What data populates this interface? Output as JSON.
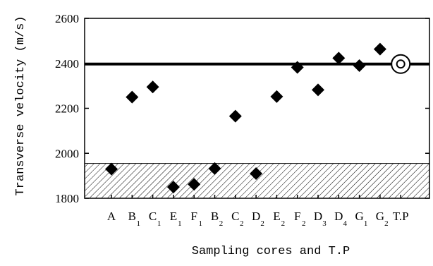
{
  "chart_data": {
    "type": "scatter",
    "title": "",
    "xlabel": "Sampling cores and T.P",
    "ylabel": "Transverse velocity (m/s)",
    "ylim": [
      1800,
      2600
    ],
    "yticks": [
      1800,
      2000,
      2200,
      2400,
      2600
    ],
    "grid": false,
    "categories": [
      {
        "base": "A",
        "sub": ""
      },
      {
        "base": "B",
        "sub": "1"
      },
      {
        "base": "C",
        "sub": "1"
      },
      {
        "base": "E",
        "sub": "1"
      },
      {
        "base": "F",
        "sub": "1"
      },
      {
        "base": "B",
        "sub": "2"
      },
      {
        "base": "C",
        "sub": "2"
      },
      {
        "base": "D",
        "sub": "2"
      },
      {
        "base": "E",
        "sub": "2"
      },
      {
        "base": "F",
        "sub": "2"
      },
      {
        "base": "D",
        "sub": "3"
      },
      {
        "base": "D",
        "sub": "4"
      },
      {
        "base": "G",
        "sub": "1"
      },
      {
        "base": "G",
        "sub": "2"
      },
      {
        "base": "T.P",
        "sub": ""
      }
    ],
    "series": [
      {
        "marker": "diamond",
        "values": [
          1930,
          2250,
          2295,
          1850,
          1862,
          1932,
          2165,
          1910,
          2252,
          2382,
          2282,
          2423,
          2390,
          2463,
          null
        ]
      },
      {
        "marker": "bullseye",
        "values": [
          null,
          null,
          null,
          null,
          null,
          null,
          null,
          null,
          null,
          null,
          null,
          null,
          null,
          null,
          2397
        ]
      }
    ],
    "reference_line": {
      "value": 2397
    },
    "hatched_band": {
      "from": 1800,
      "to": 1955
    }
  }
}
